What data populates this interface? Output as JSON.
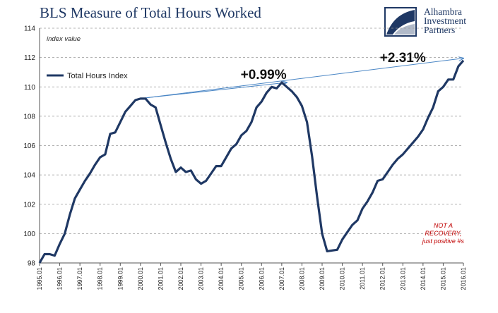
{
  "title": "BLS Measure of Total Hours Worked",
  "logo": {
    "lines": [
      "Alhambra",
      "Investment",
      "Partners"
    ],
    "color": "#1f3864"
  },
  "chart_data": {
    "type": "line",
    "title": "BLS Measure of Total Hours Worked",
    "ylabel": "index value",
    "xlabel": "",
    "ylim": [
      98,
      114
    ],
    "yticks": [
      98,
      100,
      102,
      104,
      106,
      108,
      110,
      112,
      114
    ],
    "xtick_labels": [
      "1995.01",
      "1996.01",
      "1997.01",
      "1998.01",
      "1999.01",
      "2000.01",
      "2001.01",
      "2002.01",
      "2003.01",
      "2004.01",
      "2005.01",
      "2006.01",
      "2007.01",
      "2008.01",
      "2009.01",
      "2010.01",
      "2011.01",
      "2012.01",
      "2013.01",
      "2014.01",
      "2015.01",
      "2016.01"
    ],
    "grid": "horizontal dashed",
    "legend_position": "top-left",
    "series": [
      {
        "name": "Total Hours Index",
        "color": "#1f3864",
        "x": [
          1995.0,
          1995.25,
          1995.5,
          1995.75,
          1996.0,
          1996.25,
          1996.5,
          1996.75,
          1997.0,
          1997.25,
          1997.5,
          1997.75,
          1998.0,
          1998.25,
          1998.5,
          1998.75,
          1999.0,
          1999.25,
          1999.5,
          1999.75,
          2000.0,
          2000.25,
          2000.5,
          2000.75,
          2001.0,
          2001.25,
          2001.5,
          2001.75,
          2002.0,
          2002.25,
          2002.5,
          2002.75,
          2003.0,
          2003.25,
          2003.5,
          2003.75,
          2004.0,
          2004.25,
          2004.5,
          2004.75,
          2005.0,
          2005.25,
          2005.5,
          2005.75,
          2006.0,
          2006.25,
          2006.5,
          2006.75,
          2007.0,
          2007.25,
          2007.5,
          2007.75,
          2008.0,
          2008.25,
          2008.5,
          2008.75,
          2009.0,
          2009.25,
          2009.5,
          2009.75,
          2010.0,
          2010.25,
          2010.5,
          2010.75,
          2011.0,
          2011.25,
          2011.5,
          2011.75,
          2012.0,
          2012.25,
          2012.5,
          2012.75,
          2013.0,
          2013.25,
          2013.5,
          2013.75,
          2014.0,
          2014.25,
          2014.5,
          2014.75,
          2015.0,
          2015.25,
          2015.5,
          2015.75,
          2016.0
        ],
        "values": [
          98.0,
          98.6,
          98.6,
          98.5,
          99.3,
          100.0,
          101.3,
          102.4,
          103.0,
          103.6,
          104.1,
          104.7,
          105.2,
          105.4,
          106.8,
          106.9,
          107.6,
          108.3,
          108.7,
          109.1,
          109.2,
          109.2,
          108.8,
          108.6,
          107.4,
          106.2,
          105.1,
          104.2,
          104.5,
          104.2,
          104.3,
          103.7,
          103.4,
          103.6,
          104.1,
          104.6,
          104.6,
          105.2,
          105.8,
          106.1,
          106.7,
          107.0,
          107.6,
          108.6,
          109.0,
          109.6,
          110.0,
          109.9,
          110.3,
          110.0,
          109.7,
          109.3,
          108.7,
          107.6,
          105.3,
          102.5,
          100.0,
          98.8,
          98.85,
          98.9,
          99.6,
          100.1,
          100.6,
          100.9,
          101.7,
          102.2,
          102.8,
          103.6,
          103.7,
          104.2,
          104.7,
          105.1,
          105.4,
          105.8,
          106.2,
          106.6,
          107.1,
          107.9,
          108.6,
          109.7,
          110.0,
          110.5,
          110.5,
          111.4,
          111.8
        ]
      }
    ],
    "annotations": [
      {
        "text": "+0.99%",
        "from": {
          "x": 2000.25,
          "y": 109.25
        },
        "to": {
          "x": 2007.25,
          "y": 110.3
        },
        "label_at": {
          "x": 2006.1,
          "y": 110.55
        }
      },
      {
        "text": "+2.31%",
        "from": {
          "x": 2000.25,
          "y": 109.25
        },
        "to": {
          "x": 2016.0,
          "y": 111.95
        },
        "label_at": {
          "x": 2013.0,
          "y": 111.7
        }
      },
      {
        "text": "NOT A RECOVERY, just positive #s",
        "lines": [
          "NOT A",
          "RECOVERY,",
          "just positive #s"
        ],
        "color": "#c00000",
        "label_at": {
          "x": 2015.0,
          "y": 100.4
        }
      }
    ]
  }
}
